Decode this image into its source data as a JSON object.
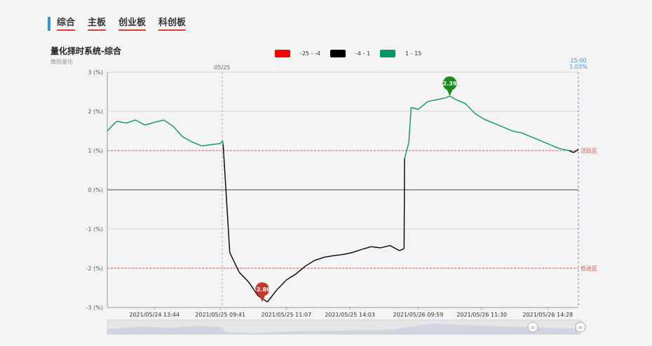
{
  "tabs": [
    "综合",
    "主板",
    "创业板",
    "科创板"
  ],
  "title": "量化择时系统-综合",
  "subtitle": "舞阳量化",
  "legend": [
    {
      "label": "-25 - -4",
      "color": "#ff0000"
    },
    {
      "label": "-4 - 1",
      "color": "#000000"
    },
    {
      "label": "1 - 15",
      "color": "#009966"
    }
  ],
  "chart_data": {
    "type": "line",
    "ylim": [
      -3,
      3
    ],
    "y_ticks": [
      "3 (%)",
      "2 (%)",
      "1 (%)",
      "0 (%)",
      "-1 (%)",
      "-2 (%)",
      "-3 (%)"
    ],
    "x_ticks": [
      "2021/05/24 13:44",
      "2021/05/25 09:41",
      "2021/05/25 11:07",
      "2021/05/25 14:03",
      "2021/05/26 09:59",
      "2021/05/26 11:30",
      "2021/05/26 14:28"
    ],
    "day_marker": "05/25",
    "end_marker": {
      "time": "15:00",
      "value": "1.03%"
    },
    "zones": [
      {
        "label": "活跃区",
        "y": 1,
        "color": "#d9534f"
      },
      {
        "label": "低迷区",
        "y": -2,
        "color": "#d9534f"
      }
    ],
    "max_point": {
      "label": "2.39",
      "x": 0.727,
      "y": 2.39,
      "color": "#1a8a1a"
    },
    "min_point": {
      "label": "-2.86",
      "x": 0.329,
      "y": -2.86,
      "color": "#c0392b"
    },
    "series": [
      {
        "x": [
          0,
          0.02,
          0.04,
          0.06,
          0.08,
          0.1,
          0.12,
          0.14,
          0.16,
          0.18,
          0.2,
          0.22,
          0.24,
          0.245,
          0.246,
          0.26,
          0.28,
          0.3,
          0.32,
          0.34,
          0.36,
          0.38,
          0.4,
          0.42,
          0.44,
          0.46,
          0.48,
          0.5,
          0.52,
          0.54,
          0.56,
          0.58,
          0.6,
          0.62,
          0.63,
          0.631,
          0.64,
          0.645,
          0.66,
          0.68,
          0.7,
          0.72,
          0.727,
          0.74,
          0.76,
          0.78,
          0.8,
          0.82,
          0.84,
          0.86,
          0.88,
          0.9,
          0.92,
          0.94,
          0.96,
          0.98,
          0.99,
          1.0
        ],
        "y": [
          1.5,
          1.75,
          1.7,
          1.78,
          1.65,
          1.72,
          1.78,
          1.62,
          1.35,
          1.22,
          1.12,
          1.15,
          1.18,
          1.25,
          1.15,
          -1.6,
          -2.1,
          -2.35,
          -2.7,
          -2.86,
          -2.55,
          -2.3,
          -2.15,
          -1.95,
          -1.8,
          -1.72,
          -1.68,
          -1.65,
          -1.6,
          -1.52,
          -1.45,
          -1.48,
          -1.42,
          -1.55,
          -1.5,
          0.8,
          1.2,
          2.1,
          2.05,
          2.25,
          2.3,
          2.35,
          2.39,
          2.3,
          2.2,
          1.95,
          1.8,
          1.7,
          1.6,
          1.5,
          1.45,
          1.35,
          1.25,
          1.15,
          1.05,
          1.0,
          0.95,
          1.03
        ]
      }
    ]
  }
}
